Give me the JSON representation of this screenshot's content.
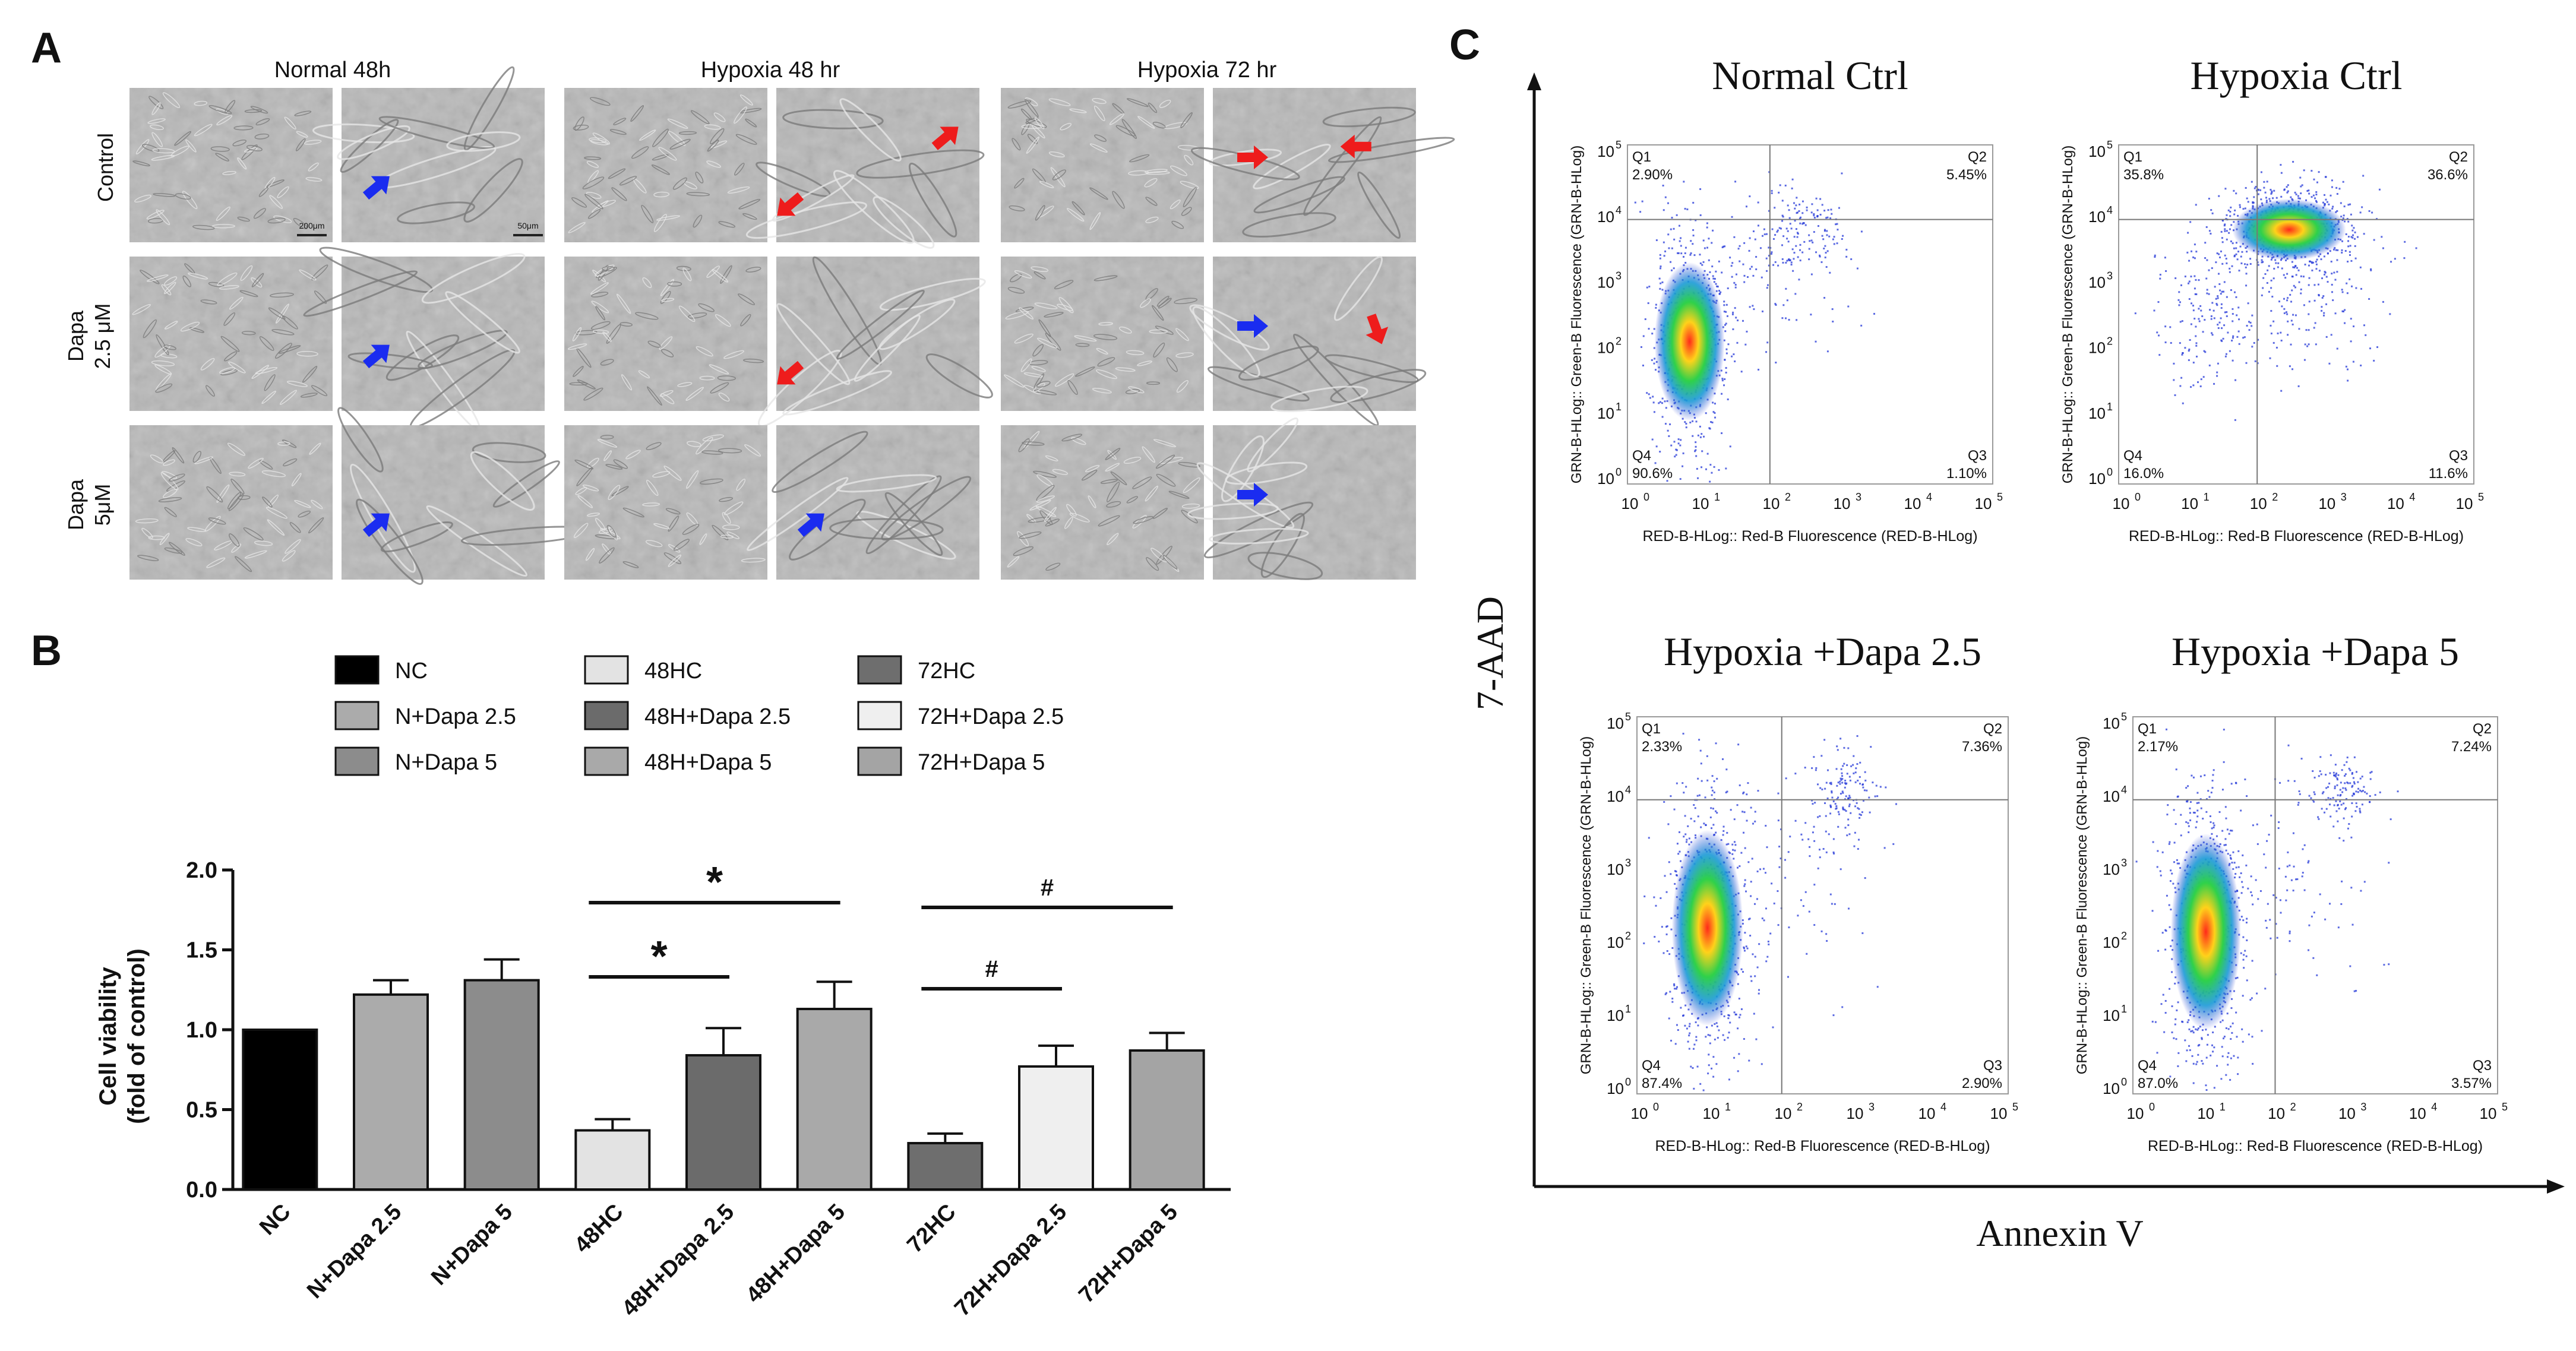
{
  "panel_letters": {
    "a": "A",
    "b": "B",
    "c": "C"
  },
  "panel_a": {
    "column_headers": [
      "Normal 48h",
      "Hypoxia 48 hr",
      "Hypoxia 72 hr"
    ],
    "row_labels": [
      {
        "line1": "Control",
        "line2": ""
      },
      {
        "line1": "Dapa",
        "line2": "2.5 μM"
      },
      {
        "line1": "Dapa",
        "line2": "5μM"
      }
    ],
    "scale_bars": [
      "200μm",
      "50μm"
    ],
    "arrow_colors": {
      "blue": "#1a2cf0",
      "red": "#ee1c1c"
    },
    "arrows": [
      {
        "row": 0,
        "col": 1,
        "color": "blue",
        "dir": "ne"
      },
      {
        "row": 0,
        "col": 3,
        "color": "red",
        "dir": "sw"
      },
      {
        "row": 0,
        "col": 3,
        "color": "red",
        "dir": "ne"
      },
      {
        "row": 0,
        "col": 5,
        "color": "red",
        "dir": "e"
      },
      {
        "row": 0,
        "col": 5,
        "color": "red",
        "dir": "w"
      },
      {
        "row": 1,
        "col": 1,
        "color": "blue",
        "dir": "ne"
      },
      {
        "row": 1,
        "col": 3,
        "color": "red",
        "dir": "sw"
      },
      {
        "row": 1,
        "col": 5,
        "color": "blue",
        "dir": "e"
      },
      {
        "row": 1,
        "col": 5,
        "color": "red",
        "dir": "s"
      },
      {
        "row": 2,
        "col": 1,
        "color": "blue",
        "dir": "ne"
      },
      {
        "row": 2,
        "col": 3,
        "color": "blue",
        "dir": "ne"
      },
      {
        "row": 2,
        "col": 5,
        "color": "blue",
        "dir": "e"
      }
    ]
  },
  "chart_data": {
    "type": "bar",
    "title": "",
    "xlabel": "",
    "ylabel": "Cell viability",
    "ylabel_sub": "(fold of control)",
    "ylim": [
      0,
      2.0
    ],
    "yticks": [
      0.0,
      0.5,
      1.0,
      1.5,
      2.0
    ],
    "ytick_labels": [
      "0.0",
      "0.5",
      "1.0",
      "1.5",
      "2.0"
    ],
    "categories": [
      "NC",
      "N+Dapa 2.5",
      "N+Dapa 5",
      "48HC",
      "48H+Dapa 2.5",
      "48H+Dapa 5",
      "72HC",
      "72H+Dapa 2.5",
      "72H+Dapa 5"
    ],
    "values": [
      1.0,
      1.22,
      1.31,
      0.37,
      0.84,
      1.13,
      0.29,
      0.77,
      0.87
    ],
    "errors": [
      0,
      0.09,
      0.13,
      0.07,
      0.17,
      0.17,
      0.06,
      0.13,
      0.11
    ],
    "colors": [
      "#000000",
      "#ababab",
      "#8c8c8c",
      "#e3e3e3",
      "#6b6b6b",
      "#a9a9a9",
      "#6e6e6e",
      "#efefef",
      "#a4a4a4"
    ],
    "legend": {
      "placement": "top",
      "columns": [
        [
          "NC",
          "N+Dapa 2.5",
          "N+Dapa 5"
        ],
        [
          "48HC",
          "48H+Dapa 2.5",
          "48H+Dapa 5"
        ],
        [
          "72HC",
          "72H+Dapa 2.5",
          "72H+Dapa 5"
        ]
      ]
    },
    "significance": [
      {
        "from": 3,
        "to": 4,
        "label": "*"
      },
      {
        "from": 3,
        "to": 5,
        "label": "*"
      },
      {
        "from": 6,
        "to": 7,
        "label": "#"
      },
      {
        "from": 6,
        "to": 8,
        "label": "#"
      }
    ]
  },
  "panel_c": {
    "y_axis_label": "7-AAD",
    "x_axis_label": "Annexin V",
    "plot_x_label": "RED-B-HLog:: Red-B Fluorescence (RED-B-HLog)",
    "plot_y_label": "GRN-B-HLog:: Green-B Fluorescence (GRN-B-HLog)",
    "tick_exponents": [
      "0",
      "1",
      "2",
      "3",
      "4",
      "5"
    ],
    "tick_base": "10",
    "plots": [
      {
        "title": "Normal Ctrl",
        "q1": "Q1",
        "q1_val": "2.90%",
        "q2": "Q2",
        "q2_val": "5.45%",
        "q3": "Q3",
        "q3_val": "1.10%",
        "q4": "Q4",
        "q4_val": "90.6%"
      },
      {
        "title": "Hypoxia Ctrl",
        "q1": "Q1",
        "q1_val": "35.8%",
        "q2": "Q2",
        "q2_val": "36.6%",
        "q3": "Q3",
        "q3_val": "11.6%",
        "q4": "Q4",
        "q4_val": "16.0%"
      },
      {
        "title": "Hypoxia +Dapa 2.5",
        "q1": "Q1",
        "q1_val": "2.33%",
        "q2": "Q2",
        "q2_val": "7.36%",
        "q3": "Q3",
        "q3_val": "2.90%",
        "q4": "Q4",
        "q4_val": "87.4%"
      },
      {
        "title": "Hypoxia +Dapa 5",
        "q1": "Q1",
        "q1_val": "2.17%",
        "q2": "Q2",
        "q2_val": "7.24%",
        "q3": "Q3",
        "q3_val": "3.57%",
        "q4": "Q4",
        "q4_val": "87.0%"
      }
    ]
  }
}
